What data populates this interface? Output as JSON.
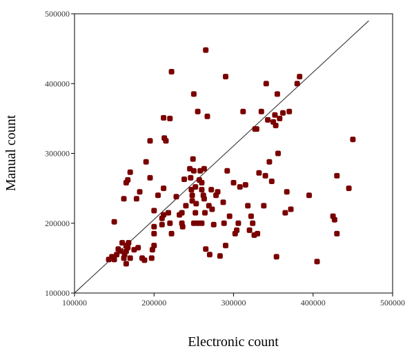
{
  "chart_data": {
    "type": "scatter",
    "title": "",
    "xlabel": "Electronic count",
    "ylabel": "Manual count",
    "xlim": [
      100000,
      500000
    ],
    "ylim": [
      100000,
      500000
    ],
    "x_ticks": [
      "100000",
      "200000",
      "300000",
      "400000",
      "500000"
    ],
    "y_ticks": [
      "100000",
      "200000",
      "300000",
      "400000",
      "500000"
    ],
    "grid": false,
    "marker_color": "#7a0000",
    "reference_line": {
      "from": [
        100000,
        100000
      ],
      "to": [
        470000,
        490000
      ],
      "color": "#444444"
    },
    "points": [
      [
        143000,
        148000
      ],
      [
        147000,
        152000
      ],
      [
        150000,
        148000
      ],
      [
        153000,
        155000
      ],
      [
        150000,
        202000
      ],
      [
        155000,
        163000
      ],
      [
        158000,
        160000
      ],
      [
        162000,
        150000
      ],
      [
        163000,
        155000
      ],
      [
        165000,
        142000
      ],
      [
        165000,
        160000
      ],
      [
        167000,
        165000
      ],
      [
        170000,
        150000
      ],
      [
        160000,
        172000
      ],
      [
        165000,
        168000
      ],
      [
        168000,
        172000
      ],
      [
        175000,
        162000
      ],
      [
        180000,
        165000
      ],
      [
        185000,
        150000
      ],
      [
        188000,
        147000
      ],
      [
        162000,
        235000
      ],
      [
        165000,
        258000
      ],
      [
        167000,
        262000
      ],
      [
        170000,
        273000
      ],
      [
        178000,
        235000
      ],
      [
        182000,
        245000
      ],
      [
        190000,
        288000
      ],
      [
        195000,
        318000
      ],
      [
        195000,
        265000
      ],
      [
        197000,
        150000
      ],
      [
        198000,
        162000
      ],
      [
        200000,
        168000
      ],
      [
        200000,
        185000
      ],
      [
        200000,
        195000
      ],
      [
        200000,
        218000
      ],
      [
        205000,
        240000
      ],
      [
        210000,
        198000
      ],
      [
        210000,
        207000
      ],
      [
        212000,
        212000
      ],
      [
        212000,
        250000
      ],
      [
        212000,
        351000
      ],
      [
        213000,
        322000
      ],
      [
        215000,
        318000
      ],
      [
        218000,
        215000
      ],
      [
        220000,
        350000
      ],
      [
        220000,
        200000
      ],
      [
        222000,
        185000
      ],
      [
        222000,
        417000
      ],
      [
        228000,
        238000
      ],
      [
        232000,
        212000
      ],
      [
        235000,
        200000
      ],
      [
        235000,
        215000
      ],
      [
        236000,
        195000
      ],
      [
        238000,
        263000
      ],
      [
        240000,
        225000
      ],
      [
        245000,
        278000
      ],
      [
        246000,
        265000
      ],
      [
        247000,
        248000
      ],
      [
        248000,
        240000
      ],
      [
        248000,
        232000
      ],
      [
        249000,
        292000
      ],
      [
        250000,
        275000
      ],
      [
        250000,
        200000
      ],
      [
        250000,
        385000
      ],
      [
        252000,
        252000
      ],
      [
        252000,
        215000
      ],
      [
        253000,
        228000
      ],
      [
        255000,
        360000
      ],
      [
        255000,
        200000
      ],
      [
        257000,
        262000
      ],
      [
        258000,
        275000
      ],
      [
        260000,
        258000
      ],
      [
        260000,
        248000
      ],
      [
        260000,
        200000
      ],
      [
        262000,
        240000
      ],
      [
        263000,
        235000
      ],
      [
        263000,
        278000
      ],
      [
        264000,
        215000
      ],
      [
        265000,
        163000
      ],
      [
        265000,
        448000
      ],
      [
        267000,
        353000
      ],
      [
        269000,
        225000
      ],
      [
        270000,
        155000
      ],
      [
        272000,
        248000
      ],
      [
        273000,
        220000
      ],
      [
        275000,
        198000
      ],
      [
        278000,
        240000
      ],
      [
        280000,
        245000
      ],
      [
        283000,
        153000
      ],
      [
        287000,
        230000
      ],
      [
        288000,
        200000
      ],
      [
        290000,
        168000
      ],
      [
        290000,
        410000
      ],
      [
        292000,
        275000
      ],
      [
        295000,
        210000
      ],
      [
        300000,
        258000
      ],
      [
        302000,
        185000
      ],
      [
        304000,
        190000
      ],
      [
        306000,
        200000
      ],
      [
        308000,
        252000
      ],
      [
        312000,
        360000
      ],
      [
        315000,
        255000
      ],
      [
        318000,
        225000
      ],
      [
        320000,
        190000
      ],
      [
        322000,
        210000
      ],
      [
        324000,
        200000
      ],
      [
        326000,
        183000
      ],
      [
        327000,
        335000
      ],
      [
        329000,
        335000
      ],
      [
        330000,
        185000
      ],
      [
        332000,
        272000
      ],
      [
        335000,
        360000
      ],
      [
        338000,
        225000
      ],
      [
        340000,
        268000
      ],
      [
        341000,
        400000
      ],
      [
        343000,
        348000
      ],
      [
        345000,
        288000
      ],
      [
        348000,
        260000
      ],
      [
        350000,
        345000
      ],
      [
        352000,
        355000
      ],
      [
        353000,
        340000
      ],
      [
        354000,
        152000
      ],
      [
        355000,
        385000
      ],
      [
        356000,
        300000
      ],
      [
        358000,
        350000
      ],
      [
        362000,
        358000
      ],
      [
        365000,
        215000
      ],
      [
        367000,
        245000
      ],
      [
        370000,
        360000
      ],
      [
        372000,
        220000
      ],
      [
        380000,
        400000
      ],
      [
        383000,
        410000
      ],
      [
        395000,
        240000
      ],
      [
        405000,
        145000
      ],
      [
        425000,
        210000
      ],
      [
        427000,
        205000
      ],
      [
        430000,
        185000
      ],
      [
        430000,
        268000
      ],
      [
        445000,
        250000
      ],
      [
        450000,
        320000
      ]
    ]
  }
}
